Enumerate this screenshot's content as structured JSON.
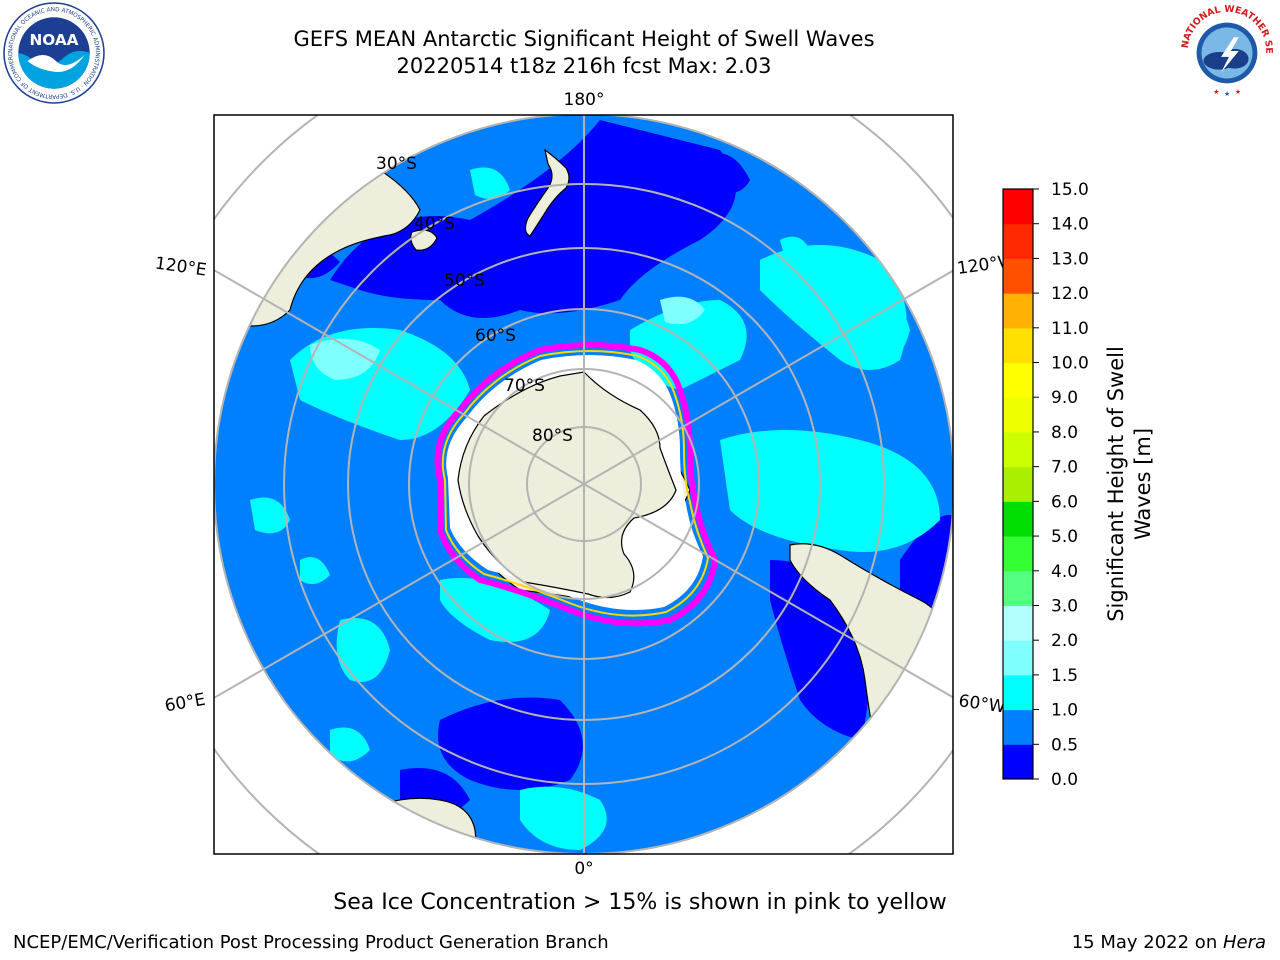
{
  "title": {
    "line1": "GEFS MEAN Antarctic Significant Height of Swell Waves",
    "line2": "20220514 t18z 216h fcst   Max: 2.03"
  },
  "map": {
    "projection": "south-polar-stereographic",
    "lat_labels": [
      "30°S",
      "40°S",
      "50°S",
      "60°S",
      "70°S",
      "80°S"
    ],
    "lon_labels": {
      "top": "180°",
      "bottom": "0°",
      "upper_left": "120°E",
      "lower_left": "60°E",
      "upper_right": "120°W",
      "lower_right": "60°W"
    },
    "colors": {
      "ocean_low": "#0000ff",
      "ocean": "#0080ff",
      "swell_mid": "#00ffff",
      "swell_high": "#80ffff",
      "land": "#eeeedc",
      "ice_edge_pink": "#ff00ff",
      "ice_edge_yellow": "#ffd700",
      "ice": "#ffffff",
      "grid": "#b4b4b4"
    }
  },
  "colorbar": {
    "label_line1": "Significant Height of Swell",
    "label_line2": "Waves [m]",
    "ticks": [
      "15.0",
      "14.0",
      "13.0",
      "12.0",
      "11.0",
      "10.0",
      "9.0",
      "8.0",
      "7.0",
      "6.0",
      "5.0",
      "4.0",
      "3.0",
      "2.0",
      "1.5",
      "1.0",
      "0.5",
      "0.0"
    ],
    "colors_bottom_to_top": [
      "#0000ff",
      "#0080ff",
      "#00ffff",
      "#40ffff",
      "#80ffff",
      "#b3ffff",
      "#55ff80",
      "#33ff33",
      "#00dd00",
      "#55ee00",
      "#aaee00",
      "#ccff00",
      "#eeff00",
      "#ffff00",
      "#ffe000",
      "#ffb000",
      "#ff8000",
      "#ff5000",
      "#ff2800",
      "#ff0000"
    ]
  },
  "note": "Sea Ice Concentration > 15% is shown in pink to yellow",
  "footer": {
    "left": "NCEP/EMC/Verification Post Processing Product Generation Branch",
    "right_prefix": "15 May 2022 on ",
    "right_host": "Hera"
  },
  "logos": {
    "noaa": "NOAA",
    "noaa_ring": "NATIONAL OCEANIC AND ATMOSPHERIC ADMINISTRATION · U.S. DEPARTMENT OF COMMERCE",
    "nws_ring": "NATIONAL WEATHER SERVICE"
  }
}
